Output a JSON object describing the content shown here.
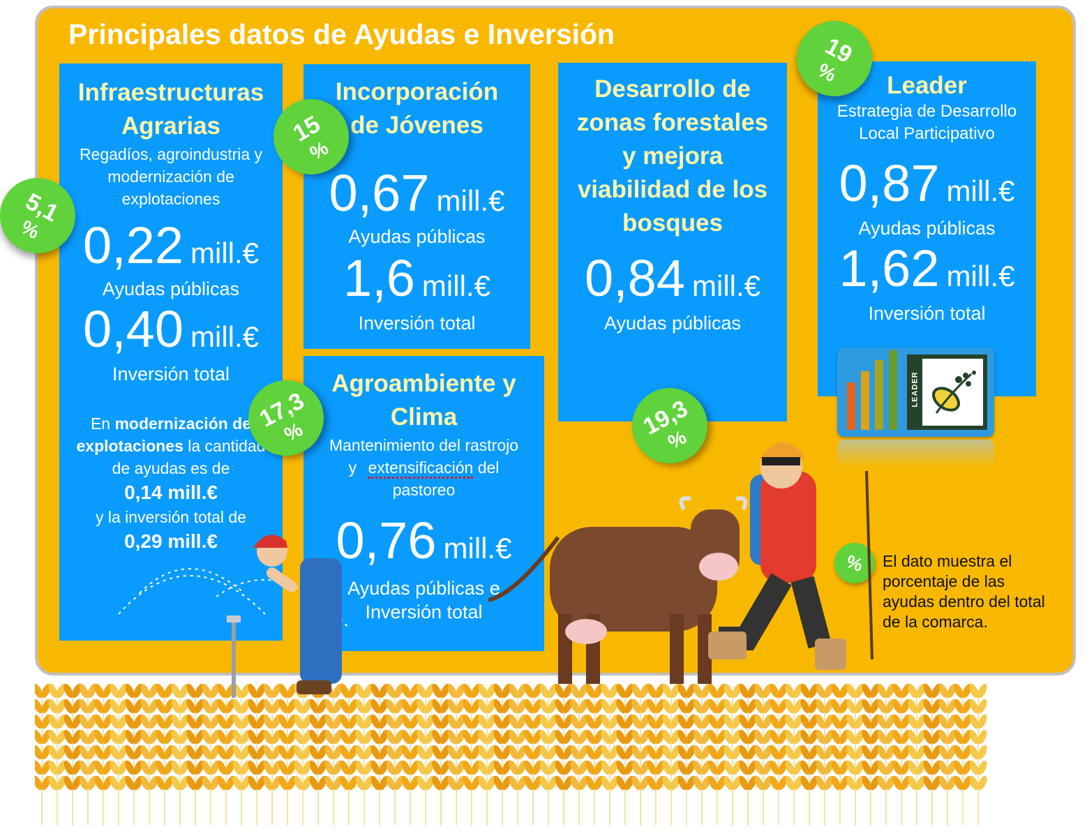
{
  "title": "Principales datos de Ayudas e Inversión",
  "panels": {
    "infra": {
      "title_line1": "Infraestructuras",
      "title_line2": "Agrarias",
      "subtitle": "Regadíos, agroindustria y modernización de explotaciones",
      "value1": "0,22",
      "unit1": "mill.€",
      "label1": "Ayudas públicas",
      "value2": "0,40",
      "unit2": "mill.€",
      "label2": "Inversión total",
      "note_pre": "En",
      "note_bold1": "modernización de explotaciones",
      "note_mid": "la cantidad de ayudas es de",
      "note_amount1": "0,14 mill.€",
      "note_mid2": "y la inversión total de",
      "note_amount2": "0,29 mill.€",
      "badge_num": "5,1",
      "badge_pct": "%"
    },
    "jovenes": {
      "title_line1": "Incorporación",
      "title_line2": "de Jóvenes",
      "value1": "0,67",
      "unit1": "mill.€",
      "label1": "Ayudas públicas",
      "value2": "1,6",
      "unit2": "mill.€",
      "label2": "Inversión total",
      "badge_num": "15",
      "badge_pct": "%"
    },
    "agro": {
      "title_line1": "Agroambiente y",
      "title_line2": "Clima",
      "subtitle_line1": "Mantenimiento del rastrojo",
      "subtitle_pre": "y",
      "subtitle_word": "extensificación",
      "subtitle_post": "del",
      "subtitle_line3": "pastoreo",
      "value1": "0,76",
      "unit1": "mill.€",
      "label1_line1": "Ayudas públicas e",
      "label1_line2": "Inversión total",
      "badge_num": "17,3",
      "badge_pct": "%"
    },
    "forestal": {
      "title_line1": "Desarrollo de",
      "title_line2": "zonas forestales",
      "title_line3": "y mejora",
      "title_line4": "viabilidad de los",
      "title_line5": "bosques",
      "value1": "0,84",
      "unit1": "mill.€",
      "label1": "Ayudas públicas",
      "badge_num": "19,3",
      "badge_pct": "%"
    },
    "leader": {
      "title": "Leader",
      "subtitle_line1": "Estrategia de Desarrollo",
      "subtitle_line2": "Local Participativo",
      "value1": "0,87",
      "unit1": "mill.€",
      "label1": "Ayudas públicas",
      "value2": "1,62",
      "unit2": "mill.€",
      "label2": "Inversión total",
      "logo_text": "LEADER",
      "badge_num": "19",
      "badge_pct": "%"
    }
  },
  "legend": {
    "badge": "%",
    "text": "El dato muestra el porcentaje de las ayudas dentro del total de la comarca."
  },
  "colors": {
    "board": "#f9b800",
    "panel": "#0a9bff",
    "panel_title": "#fff7a8",
    "badge": "#5fd23c"
  }
}
